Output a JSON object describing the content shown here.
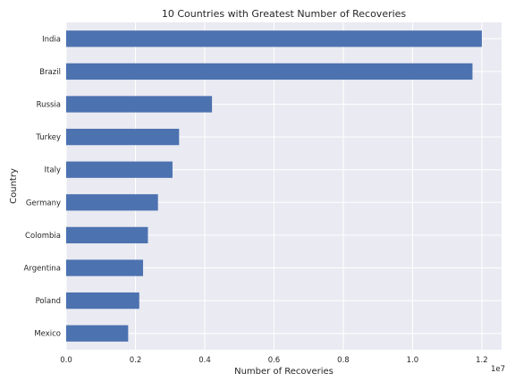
{
  "chart_data": {
    "type": "bar",
    "orientation": "horizontal",
    "title": "10 Countries with Greatest Number of Recoveries",
    "xlabel": "Number of Recoveries",
    "ylabel": "Country",
    "categories": [
      "India",
      "Brazil",
      "Russia",
      "Turkey",
      "Italy",
      "Germany",
      "Colombia",
      "Argentina",
      "Poland",
      "Mexico"
    ],
    "values": [
      12000000,
      11730000,
      4210000,
      3260000,
      3070000,
      2650000,
      2360000,
      2220000,
      2110000,
      1790000
    ],
    "xlim": [
      0,
      12570000
    ],
    "xticks": [
      0,
      2000000,
      4000000,
      6000000,
      8000000,
      10000000,
      12000000
    ],
    "xtick_labels": [
      "0.0",
      "0.2",
      "0.4",
      "0.6",
      "0.8",
      "1.0",
      "1.2"
    ],
    "x_offset_label": "1e7",
    "grid": true,
    "style": {
      "bar_color": "#4c72b0",
      "plot_background": "#eaeaf2",
      "grid_color": "#ffffff"
    }
  }
}
